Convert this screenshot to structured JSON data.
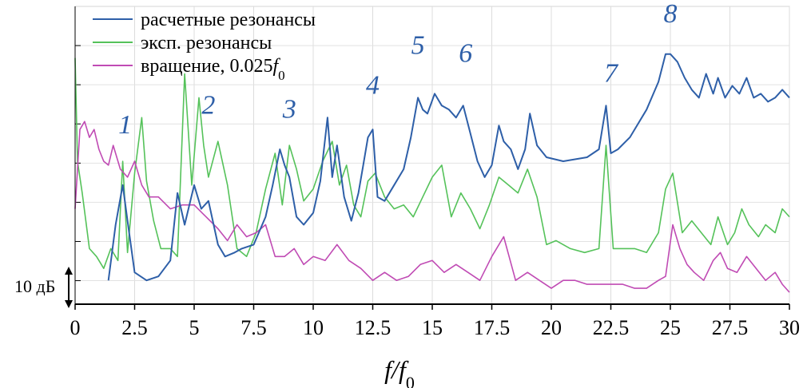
{
  "chart_data": {
    "type": "line",
    "xlabel": "f/f0",
    "xlim": [
      0,
      30
    ],
    "x_ticks": [
      "0",
      "2.5",
      "5",
      "7.5",
      "10",
      "12.5",
      "15",
      "17.5",
      "20",
      "22.5",
      "25",
      "27.5",
      "30"
    ],
    "grid": true,
    "legend_position": "top-left",
    "y_scale_marker": "10 дБ",
    "series": [
      {
        "name": "расчетные резонансы",
        "color": "#2E5FA8",
        "x": [
          1.4,
          1.7,
          2.0,
          2.2,
          2.5,
          3.0,
          3.5,
          4.0,
          4.3,
          4.6,
          5.0,
          5.3,
          5.6,
          6.0,
          6.3,
          6.7,
          7.0,
          7.5,
          8.0,
          8.3,
          8.6,
          8.8,
          9.0,
          9.3,
          9.6,
          10.0,
          10.3,
          10.6,
          10.8,
          11.0,
          11.3,
          11.6,
          11.9,
          12.1,
          12.3,
          12.5,
          12.7,
          13.0,
          13.4,
          13.8,
          14.1,
          14.4,
          14.6,
          14.8,
          15.1,
          15.4,
          15.7,
          16.0,
          16.3,
          16.6,
          16.9,
          17.2,
          17.5,
          17.8,
          18.0,
          18.3,
          18.6,
          18.9,
          19.1,
          19.4,
          19.8,
          20.5,
          21.5,
          22.0,
          22.3,
          22.5,
          22.8,
          23.3,
          24.0,
          24.5,
          24.8,
          25.0,
          25.3,
          25.6,
          25.9,
          26.2,
          26.5,
          26.8,
          27.0,
          27.3,
          27.6,
          27.9,
          28.2,
          28.5,
          28.8,
          29.1,
          29.4,
          29.7,
          30.0
        ],
        "y": [
          -38,
          -24,
          -14,
          -23,
          -36,
          -38,
          -37,
          -33,
          -16,
          -24,
          -14,
          -20,
          -18,
          -29,
          -32,
          -31,
          -30,
          -29,
          -22,
          -14,
          -5,
          -9,
          -12,
          -22,
          -24,
          -21,
          -13,
          3,
          -12,
          -4,
          -17,
          -23,
          -16,
          -9,
          -2,
          0,
          -17,
          -18,
          -14,
          -10,
          -2,
          8,
          5,
          4,
          9,
          6,
          5,
          3,
          6,
          -1,
          -8,
          -12,
          -9,
          1,
          -3,
          -5,
          -10,
          -5,
          4,
          -4,
          -7,
          -8,
          -7,
          -5,
          6,
          -6,
          -5,
          -2,
          5,
          12,
          19,
          19,
          17,
          13,
          10,
          8,
          14,
          9,
          13,
          8,
          11,
          9,
          13,
          8,
          9,
          7,
          8,
          10,
          8
        ]
      },
      {
        "name": "эксп. резонансы",
        "color": "#55C25A",
        "x": [
          0.0,
          0.1,
          0.3,
          0.6,
          0.9,
          1.2,
          1.5,
          1.8,
          2.0,
          2.2,
          2.5,
          2.8,
          3.0,
          3.3,
          3.6,
          4.0,
          4.3,
          4.6,
          4.9,
          5.2,
          5.4,
          5.6,
          6.0,
          6.4,
          6.8,
          7.2,
          7.6,
          8.0,
          8.4,
          8.7,
          9.0,
          9.3,
          9.6,
          10.0,
          10.4,
          10.8,
          11.1,
          11.4,
          11.7,
          12.0,
          12.3,
          12.6,
          13.0,
          13.4,
          13.8,
          14.2,
          14.6,
          15.0,
          15.4,
          15.8,
          16.2,
          16.6,
          17.0,
          17.4,
          17.8,
          18.2,
          18.6,
          19.0,
          19.4,
          19.8,
          20.2,
          20.8,
          21.4,
          22.0,
          22.3,
          22.6,
          23.0,
          23.5,
          24.0,
          24.5,
          24.8,
          25.1,
          25.5,
          25.9,
          26.3,
          26.7,
          27.0,
          27.4,
          27.7,
          28.0,
          28.3,
          28.7,
          29.0,
          29.4,
          29.7,
          30.0
        ],
        "y": [
          18,
          -8,
          -16,
          -30,
          -32,
          -35,
          -30,
          -33,
          -8,
          -31,
          -11,
          3,
          -13,
          -23,
          -30,
          -30,
          -32,
          14,
          -14,
          8,
          -4,
          -12,
          -3,
          -14,
          -30,
          -32,
          -26,
          -15,
          -6,
          -19,
          -4,
          -10,
          -18,
          -15,
          -8,
          -3,
          -14,
          -9,
          -19,
          -22,
          -13,
          -11,
          -17,
          -20,
          -19,
          -22,
          -17,
          -12,
          -9,
          -22,
          -16,
          -20,
          -25,
          -19,
          -12,
          -14,
          -16,
          -10,
          -17,
          -29,
          -28,
          -30,
          -31,
          -30,
          -4,
          -30,
          -30,
          -30,
          -31,
          -26,
          -15,
          -11,
          -26,
          -23,
          -26,
          -29,
          -22,
          -29,
          -26,
          -20,
          -24,
          -27,
          -24,
          -26,
          -20,
          -22
        ]
      },
      {
        "name": "вращение, 0.025f0",
        "color": "#C04BB4",
        "x": [
          0.0,
          0.2,
          0.4,
          0.6,
          0.8,
          1.0,
          1.2,
          1.4,
          1.6,
          1.9,
          2.2,
          2.5,
          2.8,
          3.1,
          3.5,
          4.0,
          4.5,
          5.0,
          5.5,
          6.0,
          6.4,
          6.8,
          7.2,
          7.6,
          8.0,
          8.4,
          8.8,
          9.2,
          9.6,
          10.0,
          10.5,
          11.0,
          11.5,
          12.0,
          12.5,
          13.0,
          13.5,
          14.0,
          14.5,
          15.0,
          15.5,
          16.0,
          16.5,
          17.0,
          17.5,
          18.0,
          18.5,
          19.0,
          19.5,
          20.0,
          20.5,
          21.0,
          21.5,
          22.0,
          22.5,
          23.0,
          23.5,
          24.0,
          24.5,
          24.8,
          25.1,
          25.4,
          25.7,
          26.0,
          26.4,
          26.8,
          27.1,
          27.4,
          27.8,
          28.2,
          28.6,
          29.0,
          29.4,
          29.7,
          30.0
        ],
        "y": [
          -20,
          0,
          2,
          -2,
          0,
          -5,
          -8,
          -9,
          -4,
          -10,
          -12,
          -8,
          -14,
          -17,
          -17,
          -20,
          -19,
          -19,
          -22,
          -25,
          -28,
          -24,
          -27,
          -26,
          -24,
          -32,
          -32,
          -30,
          -34,
          -32,
          -33,
          -29,
          -33,
          -35,
          -38,
          -36,
          -38,
          -37,
          -34,
          -33,
          -36,
          -34,
          -36,
          -38,
          -32,
          -27,
          -38,
          -36,
          -38,
          -40,
          -38,
          -38,
          -39,
          -39,
          -39,
          -39,
          -40,
          -40,
          -38,
          -37,
          -24,
          -30,
          -34,
          -36,
          -38,
          -33,
          -31,
          -35,
          -36,
          -32,
          -35,
          -38,
          -36,
          -39,
          -41
        ]
      }
    ],
    "annotations": [
      {
        "text": "1",
        "x": 2.1,
        "y": -1
      },
      {
        "text": "2",
        "x": 5.6,
        "y": 4
      },
      {
        "text": "3",
        "x": 9.0,
        "y": 3
      },
      {
        "text": "4",
        "x": 12.5,
        "y": 9
      },
      {
        "text": "5",
        "x": 14.4,
        "y": 19
      },
      {
        "text": "6",
        "x": 16.4,
        "y": 17
      },
      {
        "text": "7",
        "x": 22.5,
        "y": 12
      },
      {
        "text": "8",
        "x": 25.0,
        "y": 27
      }
    ]
  }
}
